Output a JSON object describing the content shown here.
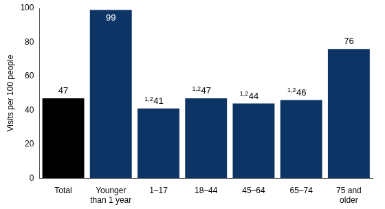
{
  "chart_data": {
    "type": "bar",
    "y_label": "Visits per 100 people",
    "categories": [
      "Total",
      "Younger than 1 year",
      "1–17",
      "18–44",
      "45–64",
      "65–74",
      "75 and older"
    ],
    "values": [
      47,
      99,
      41,
      47,
      44,
      46,
      76
    ],
    "colors": [
      "#000000",
      "#0c3566",
      "#0c3566",
      "#0c3566",
      "#0c3566",
      "#0c3566",
      "#0c3566"
    ],
    "annotations": [
      null,
      null,
      "1,2",
      "1,2",
      "1,2",
      "1,2",
      null
    ],
    "ylim": [
      0,
      100
    ],
    "yticks": [
      0,
      20,
      40,
      60,
      80,
      100
    ],
    "grid": false,
    "data_labels": true
  }
}
